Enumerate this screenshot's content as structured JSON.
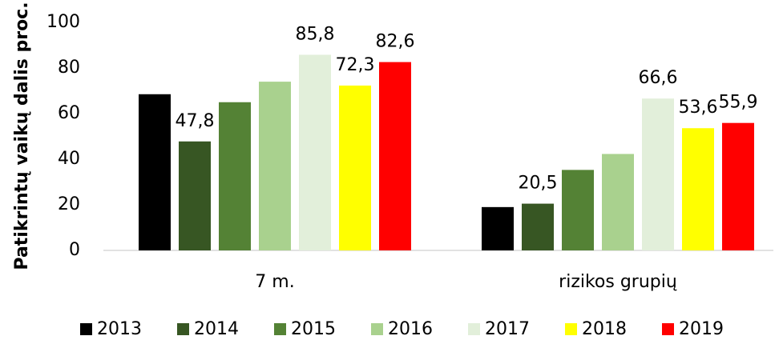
{
  "chart_data": {
    "type": "bar",
    "y_label": "Patikrintų vaikų dalis proc.",
    "categories": [
      "7 m.",
      "rizikos grupių"
    ],
    "series": [
      {
        "name": "2013",
        "color": "#000000",
        "values": [
          68.5,
          19
        ]
      },
      {
        "name": "2014",
        "color": "#375623",
        "values": [
          47.8,
          20.5
        ],
        "value_labels": [
          "47,8",
          "20,5"
        ]
      },
      {
        "name": "2015",
        "color": "#548235",
        "values": [
          65,
          35.3
        ]
      },
      {
        "name": "2016",
        "color": "#a9d18e",
        "values": [
          74,
          42.3
        ]
      },
      {
        "name": "2017",
        "color": "#e2efda",
        "values": [
          85.8,
          66.6
        ],
        "value_labels": [
          "85,8",
          "66,6"
        ]
      },
      {
        "name": "2018",
        "color": "#ffff00",
        "values": [
          72.3,
          53.6
        ],
        "value_labels": [
          "72,3",
          "53,6"
        ]
      },
      {
        "name": "2019",
        "color": "#ff0000",
        "values": [
          82.6,
          55.9
        ],
        "value_labels": [
          "82,6",
          "55,9"
        ]
      }
    ],
    "ylim": [
      0,
      100
    ],
    "yticks": [
      0,
      20,
      40,
      60,
      80,
      100
    ],
    "grid": false,
    "legend": "bottom"
  }
}
